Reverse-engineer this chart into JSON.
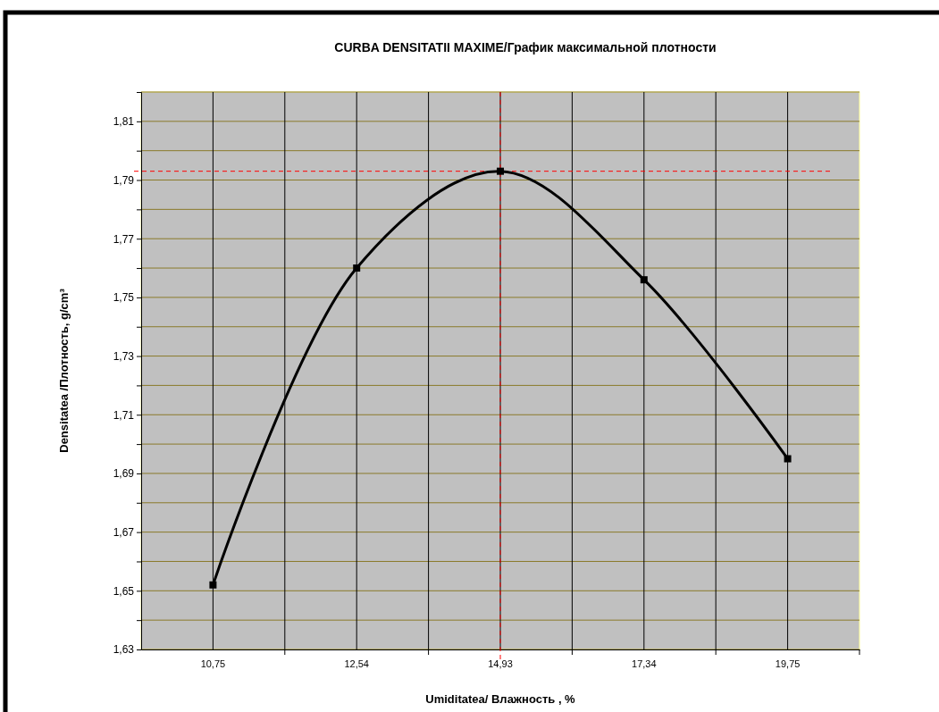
{
  "chart_data": {
    "type": "line",
    "title": "CURBA DENSITATII  MAXIME/График максимальной плотности",
    "xlabel": "Umiditatea/ Влажность , %",
    "ylabel": "Densitatea /Плотность, g/cm³",
    "categories": [
      "10,75",
      "12,54",
      "14,93",
      "17,34",
      "19,75"
    ],
    "series": [
      {
        "color": "#000000",
        "values": [
          1.652,
          1.76,
          1.793,
          1.756,
          1.695
        ]
      }
    ],
    "ylim": [
      1.63,
      1.82
    ],
    "yticks": [
      {
        "value": 1.63,
        "label": "1,63"
      },
      {
        "value": 1.64,
        "label": null
      },
      {
        "value": 1.65,
        "label": "1,65"
      },
      {
        "value": 1.66,
        "label": null
      },
      {
        "value": 1.67,
        "label": "1,67"
      },
      {
        "value": 1.68,
        "label": null
      },
      {
        "value": 1.69,
        "label": "1,69"
      },
      {
        "value": 1.7,
        "label": null
      },
      {
        "value": 1.71,
        "label": "1,71"
      },
      {
        "value": 1.72,
        "label": null
      },
      {
        "value": 1.73,
        "label": "1,73"
      },
      {
        "value": 1.74,
        "label": null
      },
      {
        "value": 1.75,
        "label": "1,75"
      },
      {
        "value": 1.76,
        "label": null
      },
      {
        "value": 1.77,
        "label": "1,77"
      },
      {
        "value": 1.78,
        "label": null
      },
      {
        "value": 1.79,
        "label": "1,79"
      },
      {
        "value": 1.8,
        "label": null
      },
      {
        "value": 1.81,
        "label": "1,81"
      },
      {
        "value": 1.82,
        "label": null
      }
    ],
    "ref_lines": [
      {
        "axis": "y",
        "value": 1.793,
        "color": "#ff0000",
        "line_style": "dashed"
      },
      {
        "axis": "x",
        "value": "14,93",
        "color": "#ff0000",
        "line_style": "dashed"
      }
    ],
    "grid": true,
    "marker": "square",
    "line_style": "solid"
  }
}
